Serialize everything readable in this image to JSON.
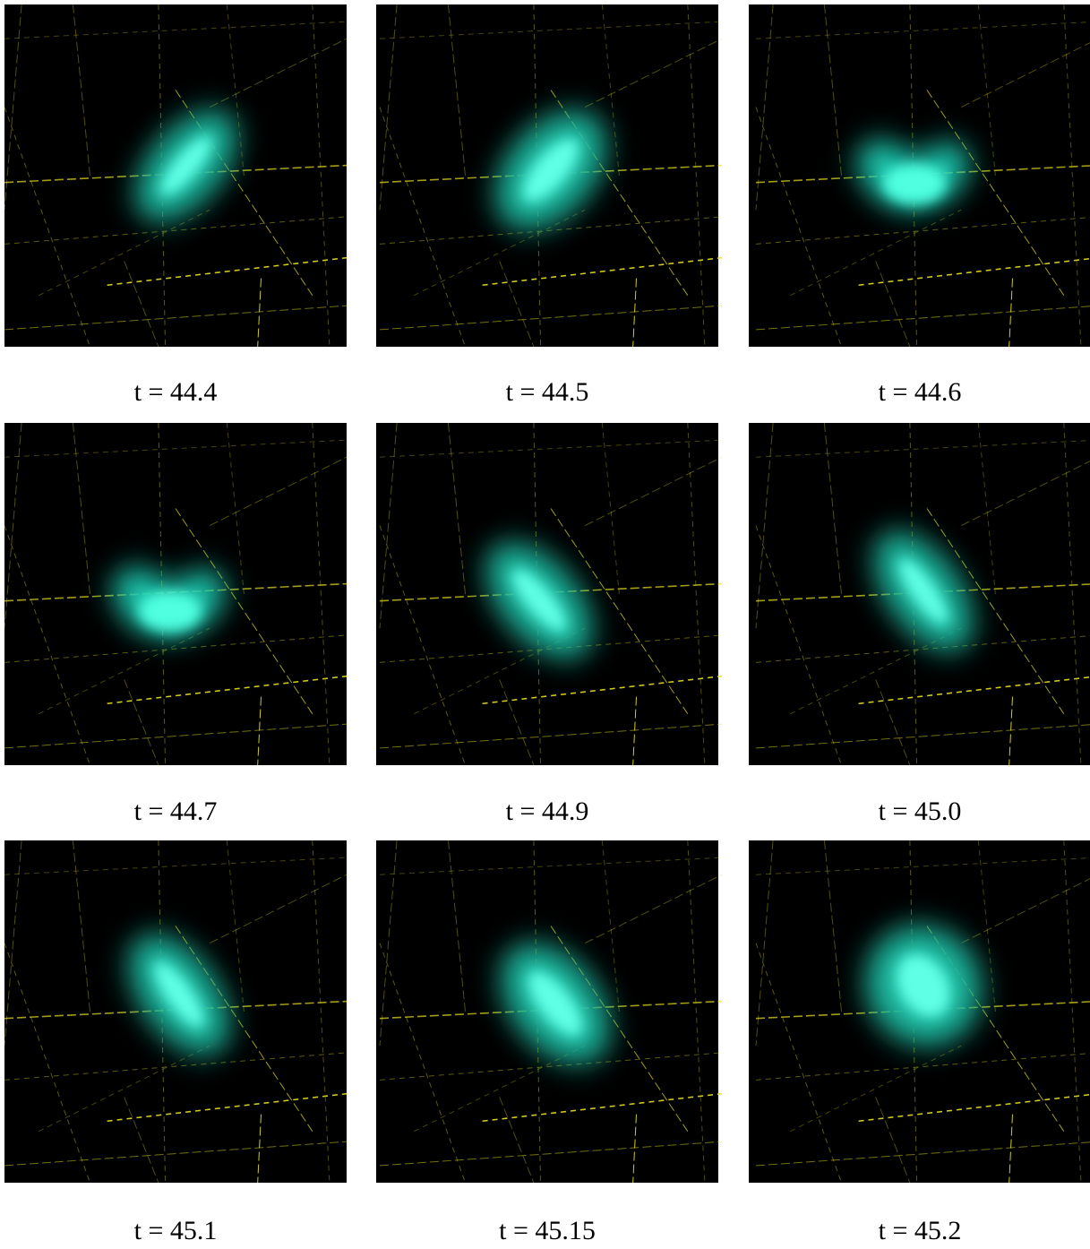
{
  "panels": [
    {
      "caption": "t = 44.4"
    },
    {
      "caption": "t = 44.5"
    },
    {
      "caption": "t = 44.6"
    },
    {
      "caption": "t = 44.7"
    },
    {
      "caption": "t = 44.9"
    },
    {
      "caption": "t = 45.0"
    },
    {
      "caption": "t = 45.1"
    },
    {
      "caption": "t = 45.15"
    },
    {
      "caption": "t = 45.2"
    }
  ]
}
